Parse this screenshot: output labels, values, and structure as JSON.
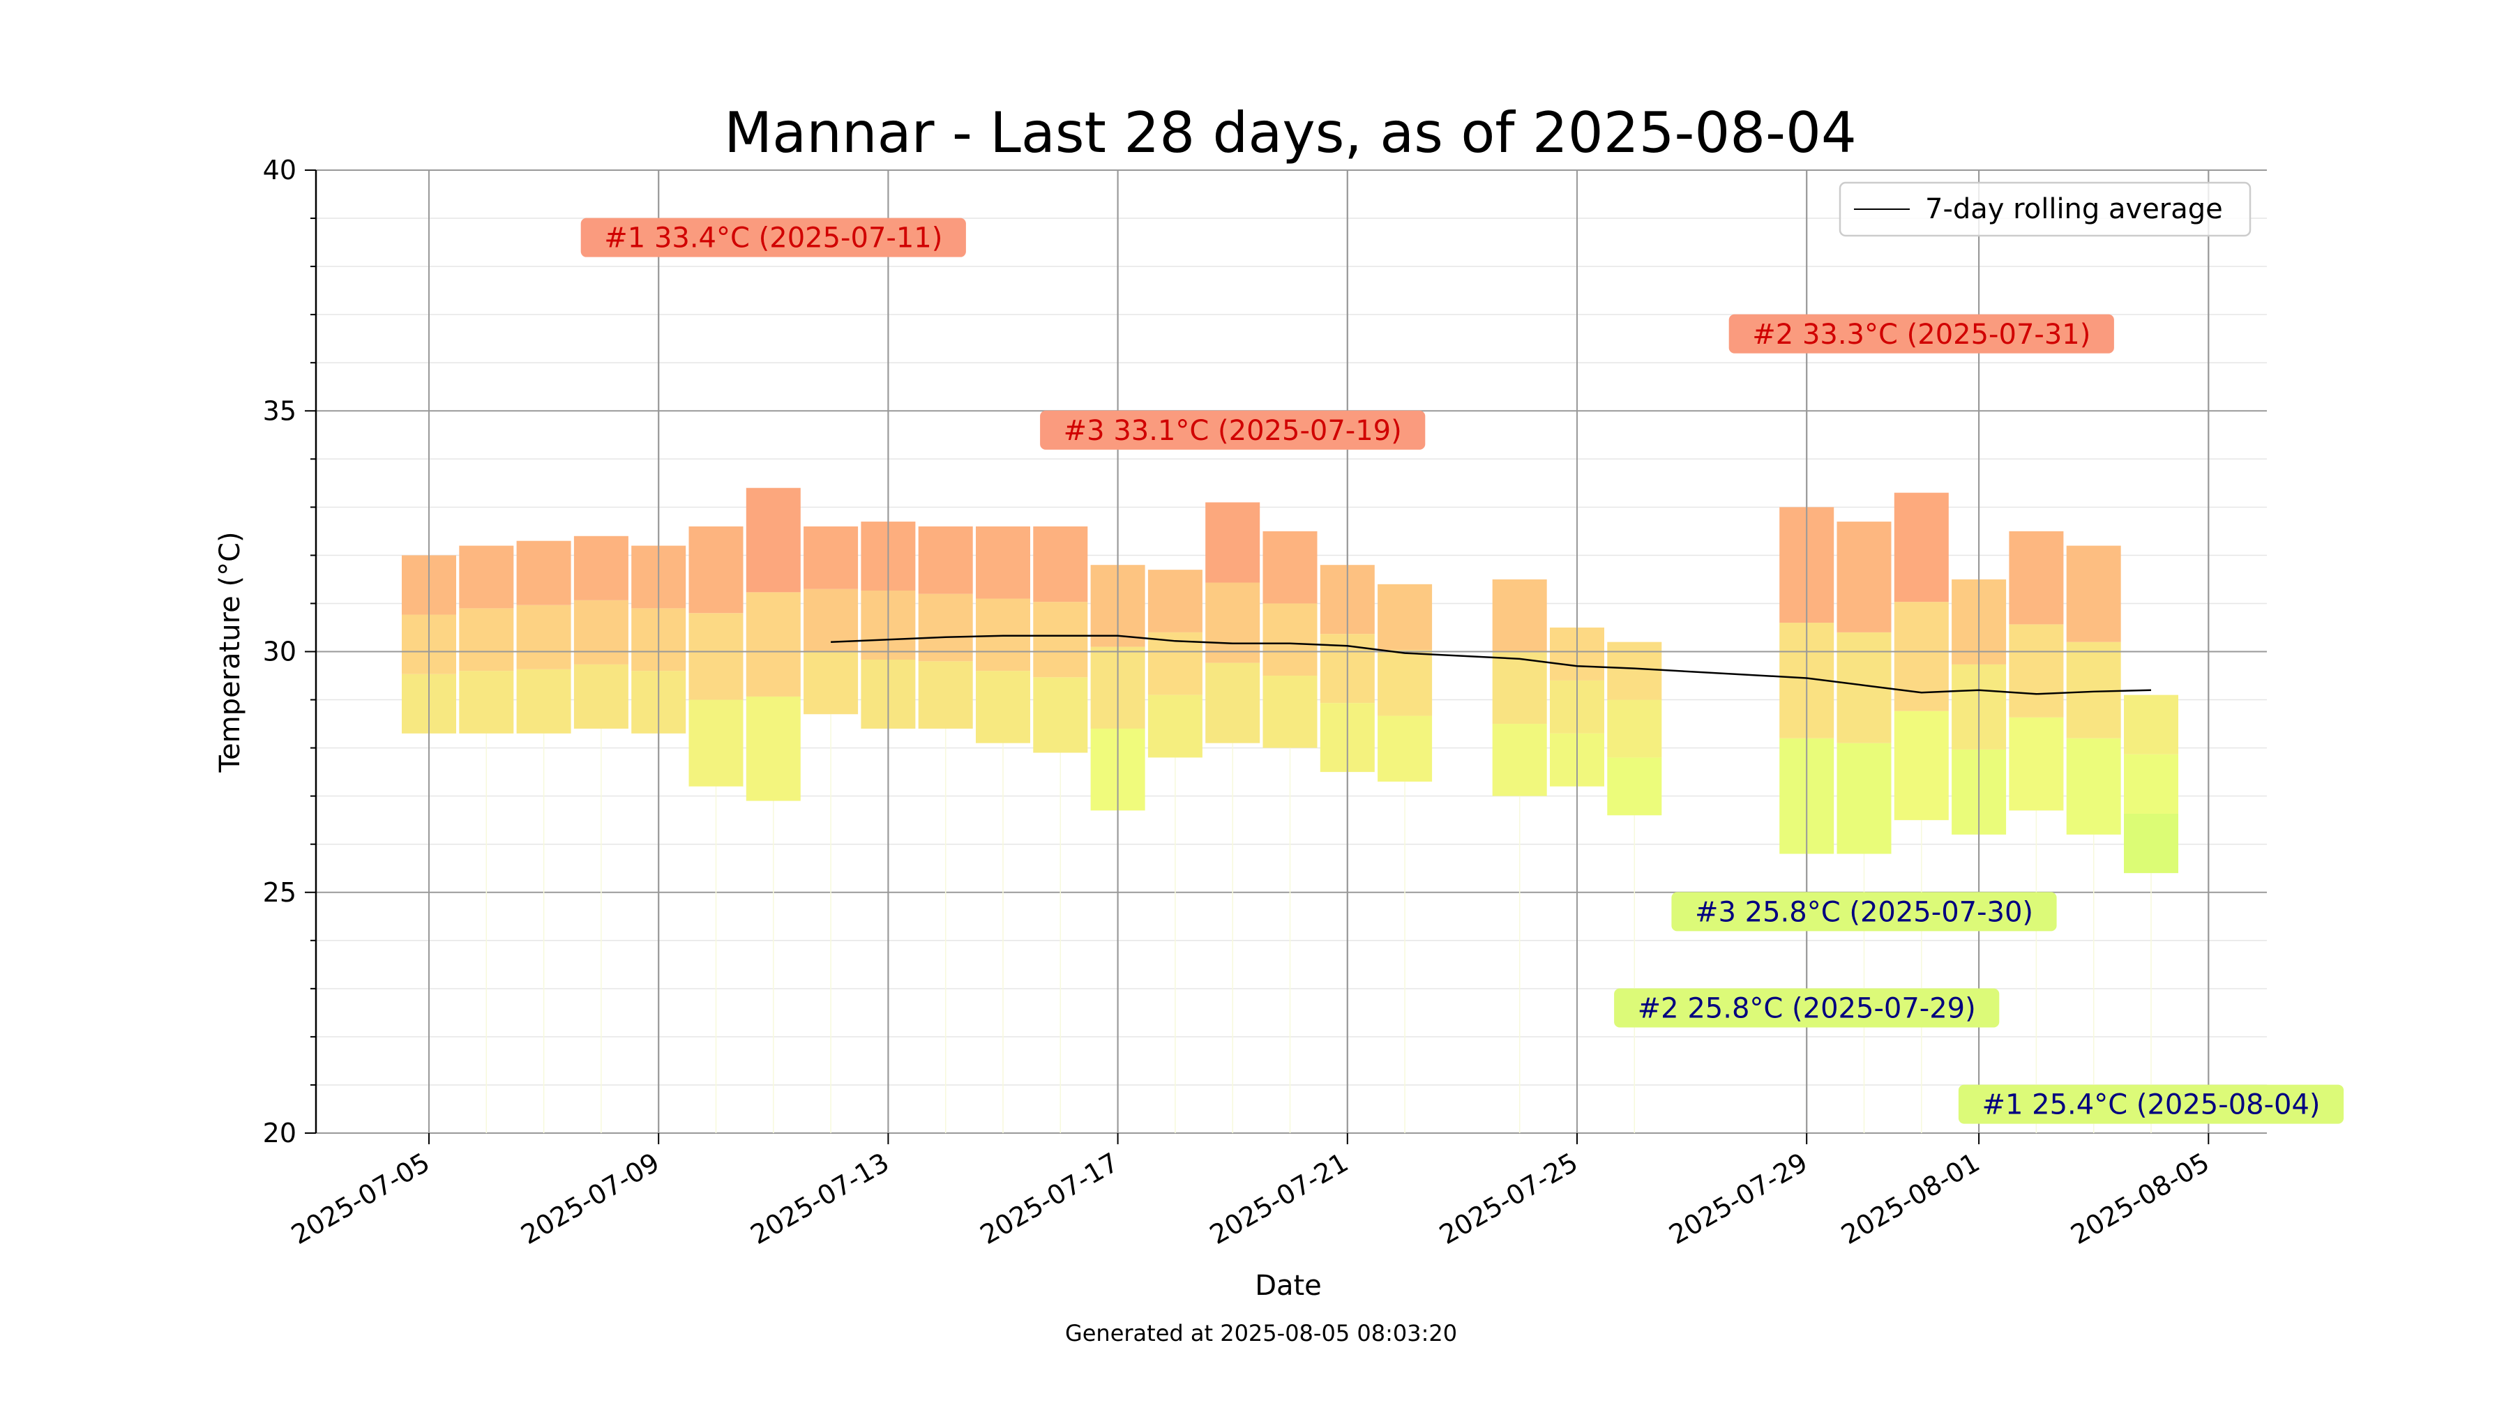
{
  "chart_data": {
    "type": "bar",
    "title": "Mannar - Last 28 days, as of 2025-08-04",
    "xlabel": "Date",
    "ylabel": "Temperature (°C)",
    "ylim": [
      20,
      40
    ],
    "y_ticks": [
      20,
      25,
      30,
      35,
      40
    ],
    "x_ticks": [
      "2025-07-05",
      "2025-07-09",
      "2025-07-13",
      "2025-07-17",
      "2025-07-21",
      "2025-07-25",
      "2025-07-29",
      "2025-08-01",
      "2025-08-05"
    ],
    "grid": true,
    "legend": {
      "position": "top-right",
      "entries": [
        "7-day rolling average"
      ]
    },
    "footer": "Generated at 2025-08-05 08:03:20",
    "days": [
      {
        "date": "2025-07-05",
        "min": 28.3,
        "max": 32.0
      },
      {
        "date": "2025-07-06",
        "min": 28.3,
        "max": 32.2
      },
      {
        "date": "2025-07-07",
        "min": 28.3,
        "max": 32.3
      },
      {
        "date": "2025-07-08",
        "min": 28.4,
        "max": 32.4
      },
      {
        "date": "2025-07-09",
        "min": 28.3,
        "max": 32.2
      },
      {
        "date": "2025-07-10",
        "min": 27.2,
        "max": 32.6
      },
      {
        "date": "2025-07-11",
        "min": 26.9,
        "max": 33.4
      },
      {
        "date": "2025-07-12",
        "min": 28.7,
        "max": 32.6
      },
      {
        "date": "2025-07-13",
        "min": 28.4,
        "max": 32.7
      },
      {
        "date": "2025-07-14",
        "min": 28.4,
        "max": 32.6
      },
      {
        "date": "2025-07-15",
        "min": 28.1,
        "max": 32.6
      },
      {
        "date": "2025-07-16",
        "min": 27.9,
        "max": 32.6
      },
      {
        "date": "2025-07-17",
        "min": 26.7,
        "max": 31.8
      },
      {
        "date": "2025-07-18",
        "min": 27.8,
        "max": 31.7
      },
      {
        "date": "2025-07-19",
        "min": 28.1,
        "max": 33.1
      },
      {
        "date": "2025-07-20",
        "min": 28.0,
        "max": 32.5
      },
      {
        "date": "2025-07-21",
        "min": 27.5,
        "max": 31.8
      },
      {
        "date": "2025-07-22",
        "min": 27.3,
        "max": 31.4
      },
      {
        "date": "2025-07-24",
        "min": 27.0,
        "max": 31.5
      },
      {
        "date": "2025-07-25",
        "min": 27.2,
        "max": 30.5
      },
      {
        "date": "2025-07-26",
        "min": 26.6,
        "max": 30.2
      },
      {
        "date": "2025-07-29",
        "min": 25.8,
        "max": 33.0
      },
      {
        "date": "2025-07-30",
        "min": 25.8,
        "max": 32.7
      },
      {
        "date": "2025-07-31",
        "min": 26.5,
        "max": 33.3
      },
      {
        "date": "2025-08-01",
        "min": 26.2,
        "max": 31.5
      },
      {
        "date": "2025-08-02",
        "min": 26.7,
        "max": 32.5
      },
      {
        "date": "2025-08-03",
        "min": 26.2,
        "max": 32.2
      },
      {
        "date": "2025-08-04",
        "min": 25.4,
        "max": 29.1
      }
    ],
    "rolling_average": {
      "name": "7-day rolling average",
      "color": "#000000",
      "points": [
        {
          "date": "2025-07-12",
          "value": 30.2
        },
        {
          "date": "2025-07-13",
          "value": 30.25
        },
        {
          "date": "2025-07-14",
          "value": 30.3
        },
        {
          "date": "2025-07-15",
          "value": 30.33
        },
        {
          "date": "2025-07-16",
          "value": 30.33
        },
        {
          "date": "2025-07-17",
          "value": 30.33
        },
        {
          "date": "2025-07-18",
          "value": 30.22
        },
        {
          "date": "2025-07-19",
          "value": 30.17
        },
        {
          "date": "2025-07-20",
          "value": 30.17
        },
        {
          "date": "2025-07-21",
          "value": 30.12
        },
        {
          "date": "2025-07-22",
          "value": 29.97
        },
        {
          "date": "2025-07-24",
          "value": 29.85
        },
        {
          "date": "2025-07-25",
          "value": 29.7
        },
        {
          "date": "2025-07-26",
          "value": 29.65
        },
        {
          "date": "2025-07-29",
          "value": 29.45
        },
        {
          "date": "2025-07-30",
          "value": 29.3
        },
        {
          "date": "2025-07-31",
          "value": 29.15
        },
        {
          "date": "2025-08-01",
          "value": 29.2
        },
        {
          "date": "2025-08-02",
          "value": 29.12
        },
        {
          "date": "2025-08-03",
          "value": 29.17
        },
        {
          "date": "2025-08-04",
          "value": 29.2
        }
      ]
    },
    "annotations": [
      {
        "text": "#1 33.4°C (2025-07-11)",
        "kind": "hot",
        "date": "2025-07-11",
        "y": 38.6
      },
      {
        "text": "#2 33.3°C (2025-07-31)",
        "kind": "hot",
        "date": "2025-07-31",
        "y": 36.6
      },
      {
        "text": "#3 33.1°C (2025-07-19)",
        "kind": "hot",
        "date": "2025-07-19",
        "y": 34.6
      },
      {
        "text": "#3 25.8°C (2025-07-30)",
        "kind": "cold",
        "date": "2025-07-30",
        "y": 24.6
      },
      {
        "text": "#2 25.8°C (2025-07-29)",
        "kind": "cold",
        "date": "2025-07-29",
        "y": 22.6
      },
      {
        "text": "#1 25.4°C (2025-08-04)",
        "kind": "cold",
        "date": "2025-08-04",
        "y": 20.6
      }
    ],
    "colors": {
      "hot_box": "#fa9b7e",
      "hot_text": "#d00000",
      "cold_box": "#dcfa78",
      "cold_text": "#000080",
      "grid_major": "#999999",
      "grid_minor": "#e6e6e6"
    }
  }
}
